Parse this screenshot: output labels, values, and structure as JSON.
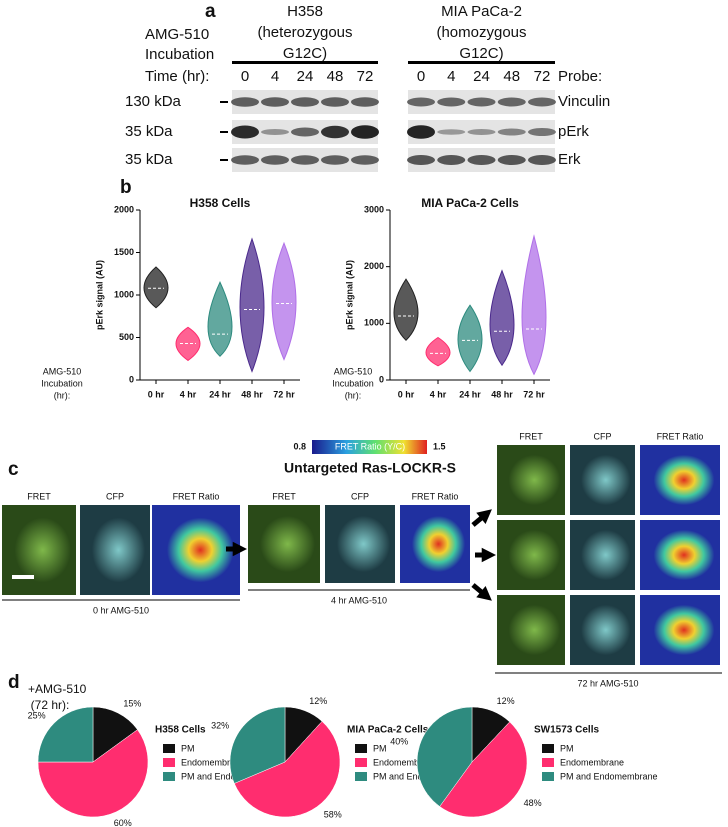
{
  "panel_labels": [
    "a",
    "b",
    "c",
    "d"
  ],
  "panel_a": {
    "row_title": [
      "AMG-510",
      "Incubation",
      "Time (hr):"
    ],
    "groups": [
      {
        "name": [
          "H358",
          "(heterozygous",
          "G12C)"
        ],
        "times": [
          "0",
          "4",
          "24",
          "48",
          "72"
        ]
      },
      {
        "name": [
          "MIA PaCa-2",
          "(homozygous",
          "G12C)"
        ],
        "times": [
          "0",
          "4",
          "24",
          "48",
          "72"
        ]
      }
    ],
    "probe_header": "Probe:",
    "rows": [
      {
        "size": "130 kDa",
        "probe": "Vinculin"
      },
      {
        "size": "35 kDa",
        "probe": "pErk"
      },
      {
        "size": "35 kDa",
        "probe": "Erk"
      }
    ]
  },
  "panel_b_row_label": [
    "AMG-510",
    "Incubation",
    "(hr):"
  ],
  "chart_data": [
    {
      "type": "violin",
      "title": "H358 Cells",
      "ylabel": "pErk signal (AU)",
      "categories": [
        "0 hr",
        "4 hr",
        "24 hr",
        "48 hr",
        "72 hr"
      ],
      "colors": [
        "#222222",
        "#ff2d6f",
        "#2e8b7f",
        "#4b2a8c",
        "#b070e8"
      ],
      "min": [
        850,
        230,
        280,
        100,
        240
      ],
      "median": [
        1080,
        430,
        540,
        830,
        900
      ],
      "max": [
        1330,
        620,
        1150,
        1660,
        1610
      ],
      "ylim": [
        0,
        2000
      ],
      "yticks": [
        0,
        500,
        1000,
        1500,
        2000
      ]
    },
    {
      "type": "violin",
      "title": "MIA PaCa-2 Cells",
      "ylabel": "pErk signal (AU)",
      "categories": [
        "0 hr",
        "4 hr",
        "24 hr",
        "48 hr",
        "72 hr"
      ],
      "colors": [
        "#222222",
        "#ff2d6f",
        "#2e8b7f",
        "#4b2a8c",
        "#b070e8"
      ],
      "min": [
        700,
        250,
        150,
        260,
        100
      ],
      "median": [
        1130,
        470,
        700,
        860,
        900
      ],
      "max": [
        1780,
        750,
        1320,
        1930,
        2540
      ],
      "ylim": [
        0,
        3000
      ],
      "yticks": [
        0,
        1000,
        2000,
        3000
      ]
    },
    {
      "type": "pie",
      "title": "H358 Cells",
      "categories": [
        "PM",
        "Endomembrane",
        "PM and Endomembrane"
      ],
      "values": [
        15,
        60,
        25
      ],
      "value_labels": [
        "15%",
        "60%",
        "25%"
      ],
      "colors": [
        "#111111",
        "#ff2d6f",
        "#2e8b7f"
      ]
    },
    {
      "type": "pie",
      "title": "MIA PaCa-2 Cells",
      "categories": [
        "PM",
        "Endomembrane",
        "PM and Endomembrane"
      ],
      "values": [
        12,
        58,
        32
      ],
      "value_labels": [
        "12%",
        "58%",
        "32%"
      ],
      "colors": [
        "#111111",
        "#ff2d6f",
        "#2e8b7f"
      ]
    },
    {
      "type": "pie",
      "title": "SW1573 Cells",
      "categories": [
        "PM",
        "Endomembrane",
        "PM and Endomembrane"
      ],
      "values": [
        12,
        48,
        40
      ],
      "value_labels": [
        "12%",
        "48%",
        "40%"
      ],
      "colors": [
        "#111111",
        "#ff2d6f",
        "#2e8b7f"
      ]
    }
  ],
  "panel_c": {
    "colorbar": {
      "min": 0.8,
      "max": 1.5,
      "label": "FRET Ratio (Y/C)"
    },
    "title": "Untargeted Ras-LOCKR-S",
    "channels": [
      "FRET",
      "CFP",
      "FRET Ratio"
    ],
    "groups": [
      "0 hr AMG-510",
      "4 hr AMG-510",
      "72 hr AMG-510"
    ]
  },
  "panel_d_label": [
    "+AMG-510",
    "(72 hr):"
  ]
}
